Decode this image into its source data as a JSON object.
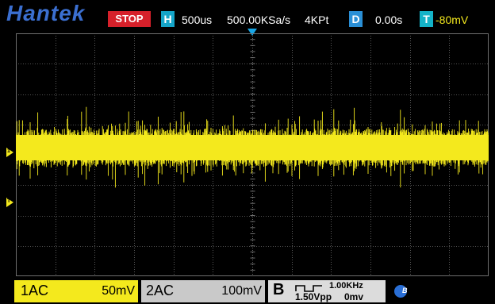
{
  "topbar": {
    "brand": "Hantek",
    "run_state": "STOP",
    "h_tag": "H",
    "timebase": "500us",
    "sample_rate": "500.00KSa/s",
    "memory_depth": "4KPt",
    "d_tag": "D",
    "delay": "0.00s",
    "t_tag": "T",
    "trigger_level": "-80mV"
  },
  "markers": {
    "ch1_marker": "1",
    "trigger_marker": "T"
  },
  "channels": [
    {
      "name": "1AC",
      "scale": "50mV",
      "color": "#f4e91d"
    },
    {
      "name": "2AC",
      "scale": "100mV",
      "color": "#c9c9c9"
    }
  ],
  "generator": {
    "name": "B",
    "frequency": "1.00KHz",
    "amplitude": "1.50Vpp",
    "offset": "0mv"
  },
  "bluetooth": {
    "label": "B"
  },
  "colors": {
    "trace": "#f4e91d",
    "grid": "#6e6e6e",
    "accent": "#14a5c8",
    "stop": "#d6202a"
  }
}
